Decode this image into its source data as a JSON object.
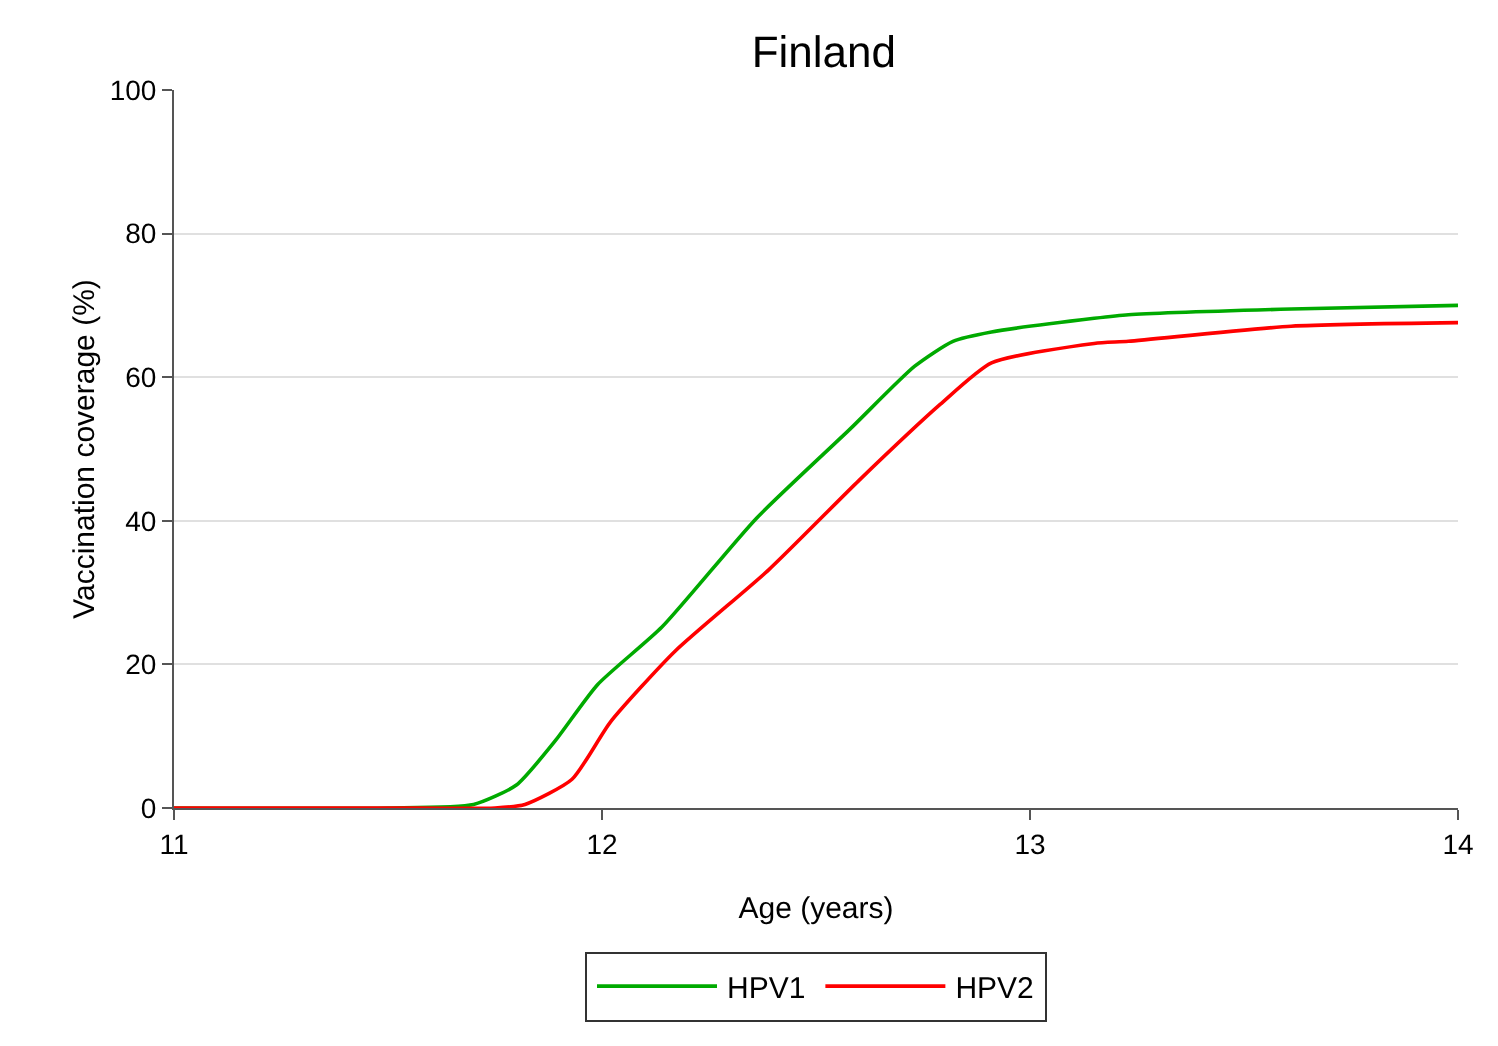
{
  "chart_data": {
    "type": "line",
    "title": "Finland",
    "xlabel": "Age (years)",
    "ylabel": "Vaccination coverage (%)",
    "xlim": [
      11,
      14
    ],
    "xticks": [
      11,
      12,
      13,
      14
    ],
    "ylim": [
      0,
      100
    ],
    "yticks": [
      0,
      20,
      40,
      60,
      80,
      100
    ],
    "grid": "y",
    "legend": "bottom",
    "marker": "none",
    "line_style": "solid",
    "series": [
      {
        "name": "HPV1",
        "color": "#00aa00",
        "x": [
          11,
          11.5,
          11.7,
          11.8,
          11.89,
          11.99,
          12.14,
          12.36,
          12.58,
          12.73,
          12.82,
          12.91,
          13.15,
          13.23,
          13.61,
          14
        ],
        "values": [
          0,
          0,
          0.5,
          3.2,
          9.3,
          17.2,
          25.2,
          40.3,
          52.8,
          61.5,
          65,
          66.3,
          68.2,
          68.7,
          69.5,
          70
        ]
      },
      {
        "name": "HPV2",
        "color": "#ff0000",
        "x": [
          11,
          11.5,
          11.75,
          11.82,
          11.93,
          12.02,
          12.17,
          12.39,
          12.6,
          12.79,
          12.91,
          13.15,
          13.23,
          13.61,
          14
        ],
        "values": [
          0,
          0,
          0,
          0.5,
          4,
          12,
          21.8,
          33.2,
          45.6,
          56.2,
          62,
          64.7,
          65,
          67.1,
          67.6
        ]
      }
    ]
  }
}
